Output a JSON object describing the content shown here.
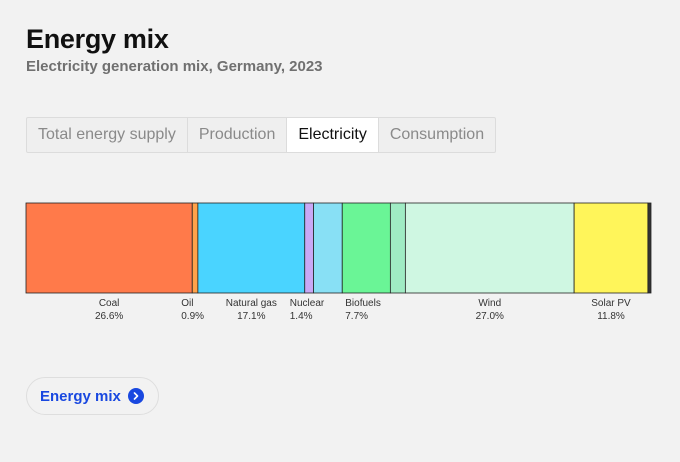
{
  "header": {
    "title": "Energy mix",
    "subtitle": "Electricity generation mix, Germany, 2023"
  },
  "tabs": [
    {
      "label": "Total energy supply",
      "active": false
    },
    {
      "label": "Production",
      "active": false
    },
    {
      "label": "Electricity",
      "active": true
    },
    {
      "label": "Consumption",
      "active": false
    }
  ],
  "chart_data": {
    "type": "bar",
    "title": "",
    "xlabel": "",
    "ylabel": "",
    "unit": "%",
    "categories": [
      "Coal",
      "Oil",
      "Natural gas",
      "Nuclear",
      "",
      "Biofuels",
      "",
      "Wind",
      "Solar PV",
      ""
    ],
    "values": [
      26.6,
      0.9,
      17.1,
      1.4,
      4.6,
      7.7,
      2.4,
      27.0,
      11.8,
      0.5
    ],
    "value_labels": [
      "26.6%",
      "0.9%",
      "17.1%",
      "1.4%",
      "",
      "7.7%",
      "",
      "27.0%",
      "11.8%",
      ""
    ],
    "colors": [
      "#ff7a4a",
      "#ffa24a",
      "#4ad4ff",
      "#c9a8f5",
      "#88e0f5",
      "#6af596",
      "#a0ecc4",
      "#cff7e2",
      "#fff55a",
      "#333333"
    ]
  },
  "cta": {
    "label": "Energy mix",
    "icon": "chevron-right-icon"
  }
}
